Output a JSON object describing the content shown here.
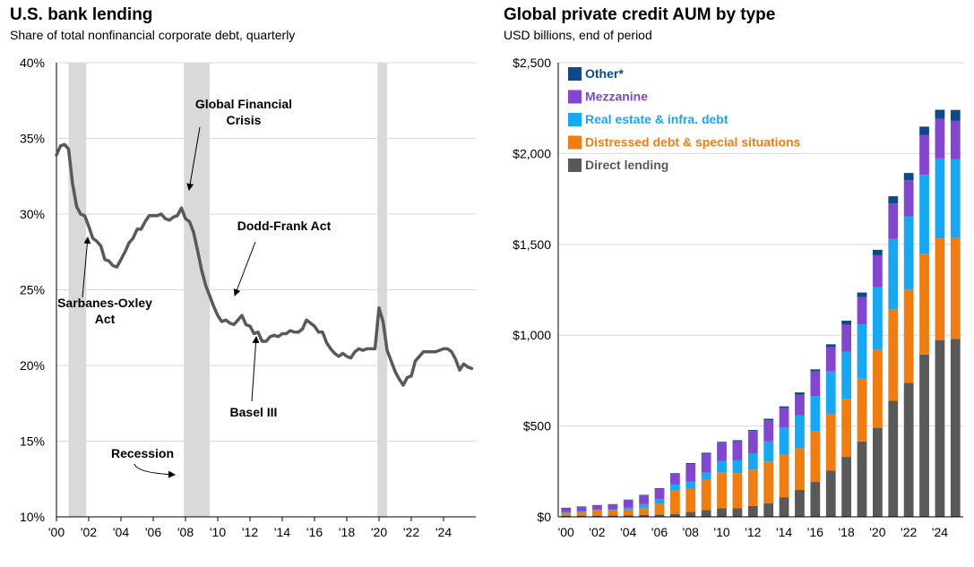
{
  "left_chart": {
    "title": "U.S. bank lending",
    "subtitle": "Share of total nonfinancial corporate debt, quarterly"
  },
  "right_chart": {
    "title": "Global private credit AUM by type",
    "subtitle": "USD billions, end of period"
  },
  "chart_data": [
    {
      "type": "line",
      "title": "U.S. bank lending",
      "subtitle": "Share of total nonfinancial corporate debt, quarterly",
      "ylim": [
        10,
        40
      ],
      "yticks": [
        10,
        15,
        20,
        25,
        30,
        35,
        40
      ],
      "ytick_labels": [
        "10%",
        "15%",
        "20%",
        "25%",
        "30%",
        "35%",
        "40%"
      ],
      "xlim": [
        2000,
        2026
      ],
      "xticks": [
        2000,
        2002,
        2004,
        2006,
        2008,
        2010,
        2012,
        2014,
        2016,
        2018,
        2020,
        2022,
        2024
      ],
      "xtick_labels": [
        "'00",
        "'02",
        "'04",
        "'06",
        "'08",
        "'10",
        "'12",
        "'14",
        "'16",
        "'18",
        "'20",
        "'22",
        "'24"
      ],
      "grid": "horizontal",
      "line_color": "#595959",
      "recession_color": "#d9d9d9",
      "recessions": [
        [
          2000.75,
          2001.85
        ],
        [
          2007.9,
          2009.5
        ],
        [
          2019.9,
          2020.5
        ]
      ],
      "series": [
        {
          "x": [
            2000.0,
            2000.25,
            2000.5,
            2000.75,
            2001.0,
            2001.25,
            2001.5,
            2001.75,
            2002.0,
            2002.25,
            2002.5,
            2002.75,
            2003.0,
            2003.25,
            2003.5,
            2003.75,
            2004.0,
            2004.25,
            2004.5,
            2004.75,
            2005.0,
            2005.25,
            2005.5,
            2005.75,
            2006.0,
            2006.25,
            2006.5,
            2006.75,
            2007.0,
            2007.25,
            2007.5,
            2007.75,
            2008.0,
            2008.25,
            2008.5,
            2008.75,
            2009.0,
            2009.25,
            2009.5,
            2009.75,
            2010.0,
            2010.25,
            2010.5,
            2010.75,
            2011.0,
            2011.25,
            2011.5,
            2011.75,
            2012.0,
            2012.25,
            2012.5,
            2012.75,
            2013.0,
            2013.25,
            2013.5,
            2013.75,
            2014.0,
            2014.25,
            2014.5,
            2014.75,
            2015.0,
            2015.25,
            2015.5,
            2015.75,
            2016.0,
            2016.25,
            2016.5,
            2016.75,
            2017.0,
            2017.25,
            2017.5,
            2017.75,
            2018.0,
            2018.25,
            2018.5,
            2018.75,
            2019.0,
            2019.25,
            2019.5,
            2019.75,
            2020.0,
            2020.25,
            2020.5,
            2020.75,
            2021.0,
            2021.25,
            2021.5,
            2021.75,
            2022.0,
            2022.25,
            2022.5,
            2022.75,
            2023.0,
            2023.25,
            2023.5,
            2023.75,
            2024.0,
            2024.25,
            2024.5,
            2024.75,
            2025.0,
            2025.25,
            2025.5,
            2025.75
          ],
          "values": [
            33.9,
            34.5,
            34.6,
            34.3,
            32.0,
            30.5,
            30.0,
            29.9,
            29.2,
            28.4,
            28.2,
            27.9,
            27.0,
            26.9,
            26.6,
            26.5,
            27.0,
            27.5,
            28.1,
            28.4,
            29.0,
            29.0,
            29.5,
            29.9,
            29.9,
            29.9,
            30.0,
            29.7,
            29.6,
            29.8,
            29.9,
            30.4,
            29.7,
            29.5,
            28.8,
            27.6,
            26.3,
            25.3,
            24.6,
            23.9,
            23.3,
            22.9,
            23.0,
            22.8,
            22.7,
            23.0,
            23.3,
            22.7,
            22.6,
            22.1,
            22.2,
            21.6,
            21.6,
            21.9,
            22.0,
            21.9,
            22.1,
            22.1,
            22.3,
            22.2,
            22.2,
            22.4,
            23.0,
            22.8,
            22.6,
            22.2,
            22.2,
            21.5,
            21.1,
            20.8,
            20.6,
            20.8,
            20.6,
            20.5,
            20.9,
            21.1,
            21.0,
            21.1,
            21.1,
            21.1,
            23.8,
            22.9,
            21.0,
            20.3,
            19.6,
            19.1,
            18.7,
            19.2,
            19.3,
            20.3,
            20.6,
            20.9,
            20.9,
            20.9,
            20.9,
            21.0,
            21.1,
            21.1,
            20.9,
            20.4,
            19.7,
            20.1,
            19.9,
            19.8
          ]
        }
      ],
      "annotations": [
        {
          "lines": [
            "Global Financial",
            "Crisis"
          ]
        },
        {
          "lines": [
            "Dodd-Frank Act"
          ]
        },
        {
          "lines": [
            "Sarbanes-Oxley",
            "Act"
          ]
        },
        {
          "lines": [
            "Basel III"
          ]
        },
        {
          "lines": [
            "Recession"
          ]
        }
      ]
    },
    {
      "type": "bar",
      "stacked": true,
      "title": "Global private credit AUM by type",
      "subtitle": "USD billions, end of period",
      "ylim": [
        0,
        2500
      ],
      "yticks": [
        0,
        500,
        1000,
        1500,
        2000,
        2500
      ],
      "ytick_labels": [
        "$0",
        "$500",
        "$1,000",
        "$1,500",
        "$2,000",
        "$2,500"
      ],
      "categories": [
        "2000",
        "2001",
        "2002",
        "2003",
        "2004",
        "2005",
        "2006",
        "2007",
        "2008",
        "2009",
        "2010",
        "2011",
        "2012",
        "2013",
        "2014",
        "2015",
        "2016",
        "2017",
        "2018",
        "2019",
        "2020",
        "2021",
        "2022",
        "2023",
        "2024",
        "2025"
      ],
      "xtick_labels": [
        "'00",
        "'02",
        "'04",
        "'06",
        "'08",
        "'10",
        "'12",
        "'14",
        "'16",
        "'18",
        "'20",
        "'22",
        "'24"
      ],
      "xtick_positions": [
        0,
        2,
        4,
        6,
        8,
        10,
        12,
        14,
        16,
        18,
        20,
        22,
        24
      ],
      "grid": "horizontal",
      "legend_placement": "top-left",
      "series": [
        {
          "name": "Direct lending",
          "color": "#595959",
          "values": [
            5,
            5,
            5,
            7,
            8,
            10,
            12,
            15,
            28,
            38,
            48,
            48,
            60,
            75,
            108,
            148,
            192,
            255,
            330,
            415,
            490,
            640,
            738,
            893,
            973,
            980
          ]
        },
        {
          "name": "Distressed debt & special situations",
          "color": "#ef7d12",
          "values": [
            17,
            22,
            30,
            30,
            32,
            40,
            60,
            130,
            125,
            165,
            195,
            193,
            200,
            230,
            235,
            230,
            278,
            310,
            320,
            345,
            430,
            500,
            515,
            555,
            560,
            555
          ]
        },
        {
          "name": "Real estate & infra. debt",
          "color": "#18a7f2",
          "values": [
            5,
            5,
            5,
            5,
            10,
            20,
            25,
            35,
            40,
            40,
            65,
            70,
            90,
            110,
            150,
            180,
            195,
            235,
            260,
            300,
            345,
            390,
            400,
            435,
            440,
            435
          ]
        },
        {
          "name": "Mezzanine",
          "color": "#8446cf",
          "values": [
            20,
            22,
            22,
            25,
            42,
            48,
            58,
            58,
            98,
            105,
            100,
            106,
            122,
            117,
            105,
            115,
            135,
            133,
            148,
            150,
            175,
            195,
            200,
            220,
            218,
            210
          ]
        },
        {
          "name": "Other*",
          "color": "#0f4a86",
          "values": [
            3,
            3,
            3,
            3,
            3,
            3,
            3,
            3,
            5,
            5,
            5,
            5,
            6,
            8,
            10,
            12,
            12,
            17,
            22,
            25,
            30,
            40,
            40,
            45,
            50,
            60
          ]
        }
      ]
    }
  ]
}
